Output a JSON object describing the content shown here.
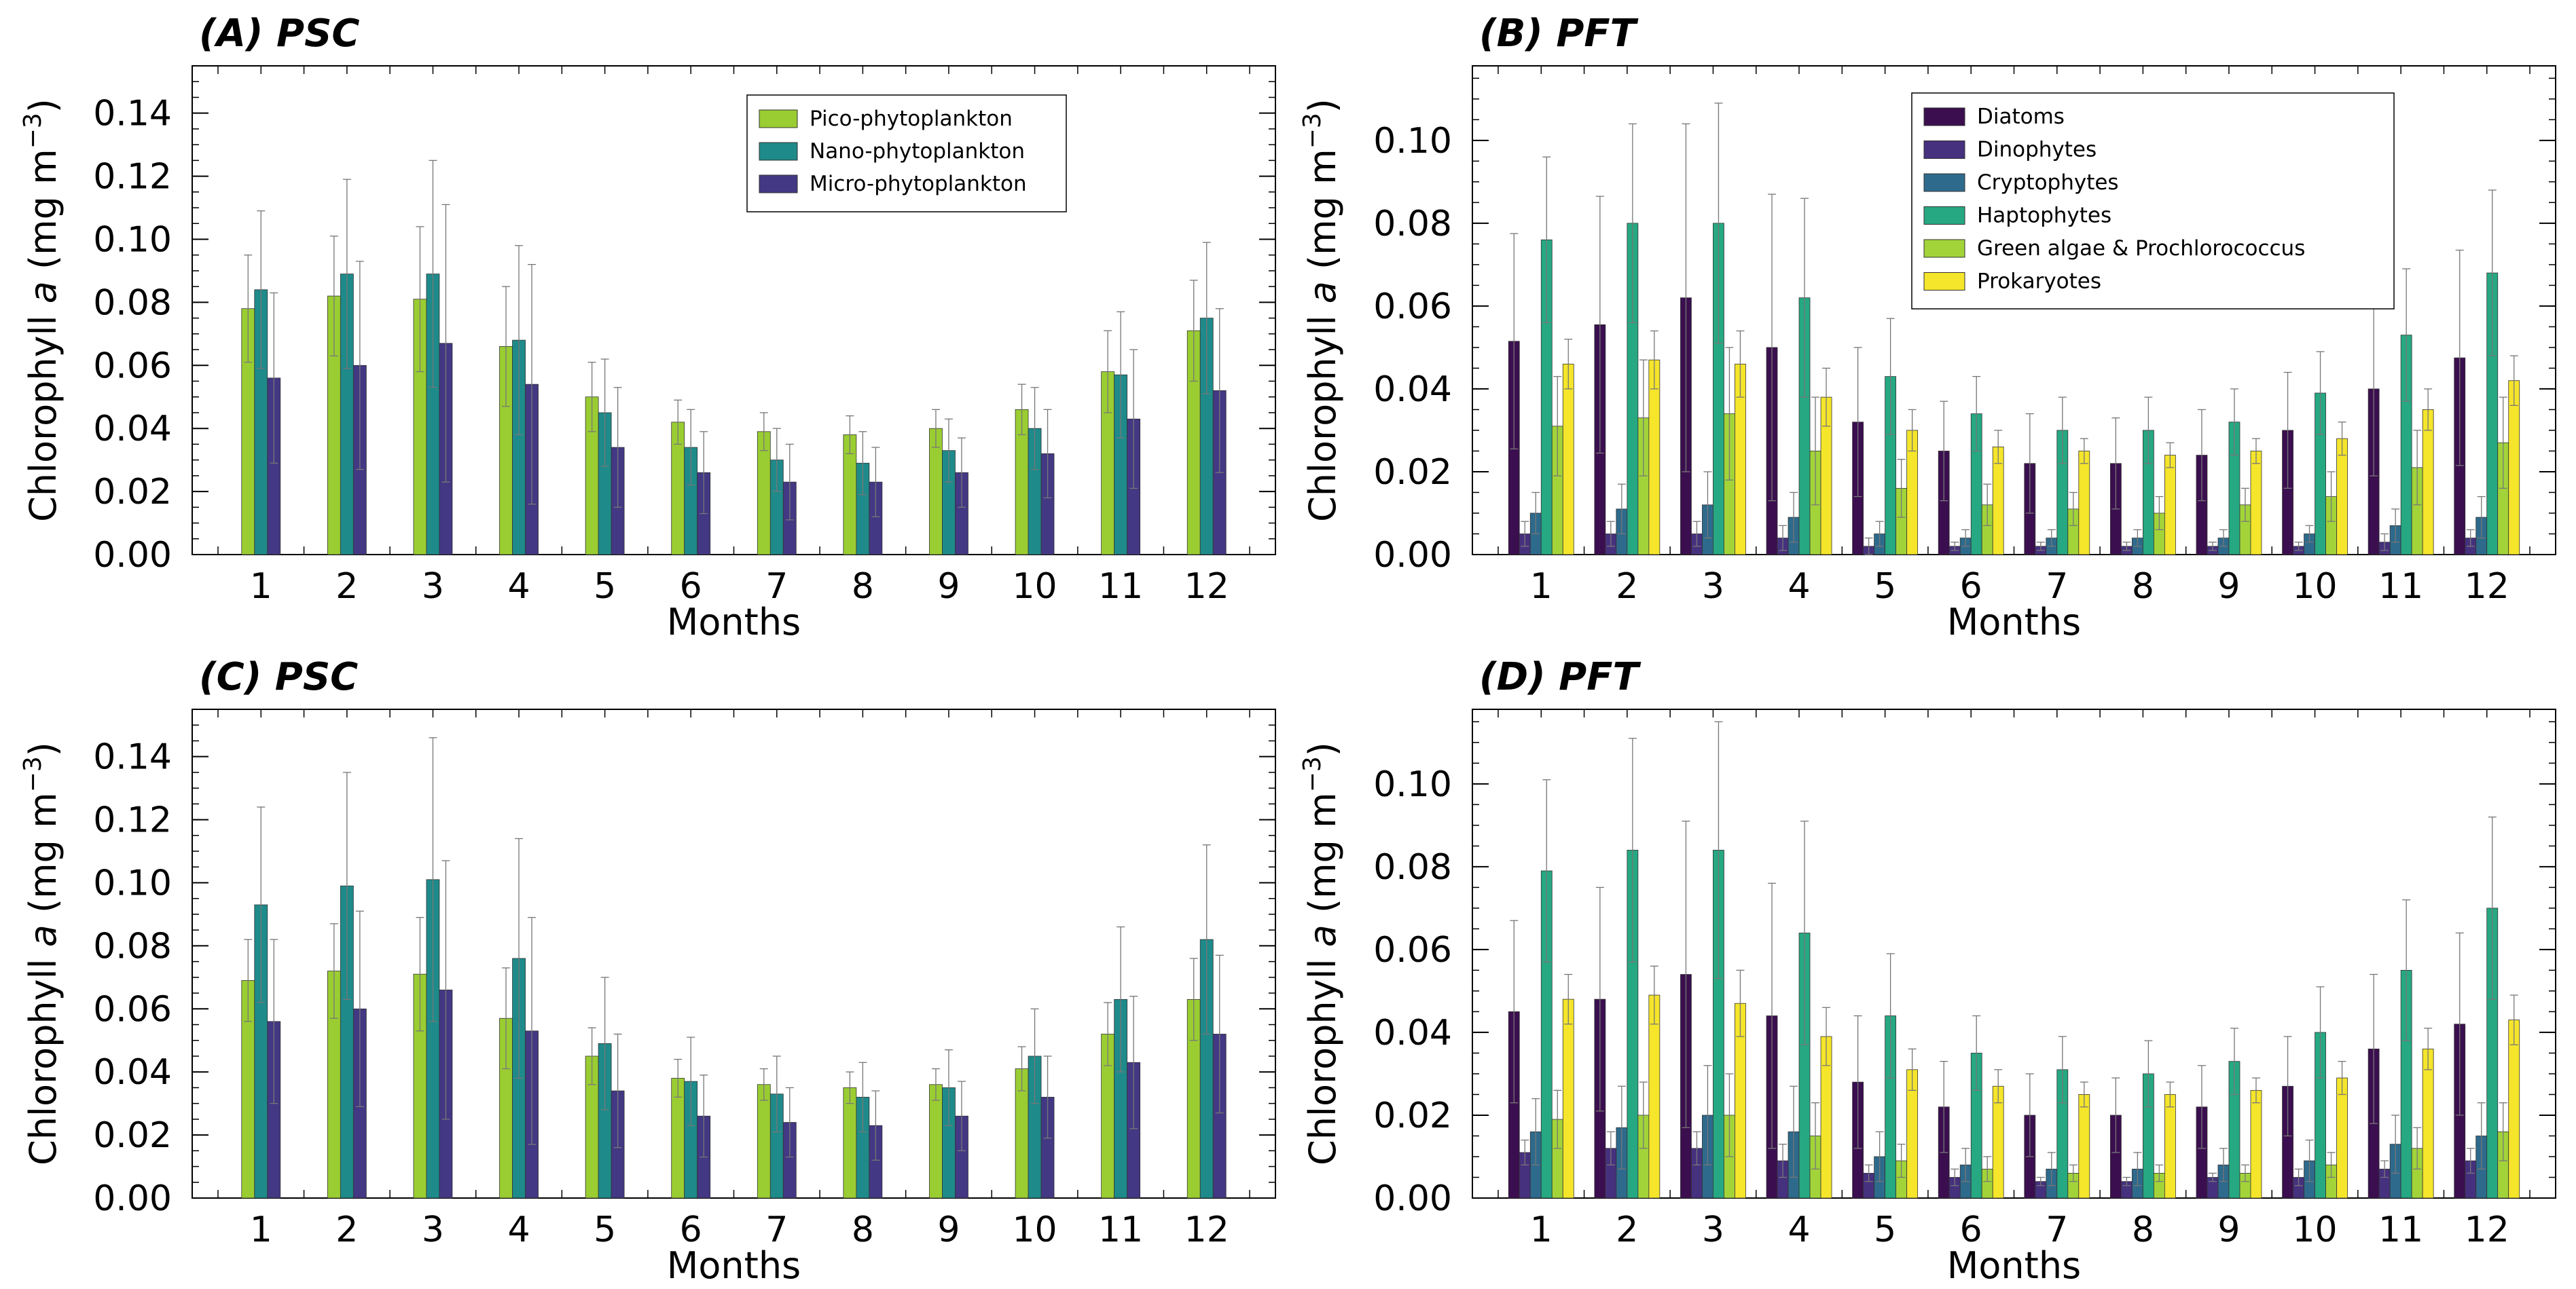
{
  "figure": {
    "colors": {
      "Pico-phytoplankton": "#9acd32",
      "Nano-phytoplankton": "#1f8a8a",
      "Micro-phytoplankton": "#433883",
      "Diatoms": "#3b0f4f",
      "Dinophytes": "#46317e",
      "Cryptophytes": "#2e6a8c",
      "Haptophytes": "#26a882",
      "Green algae & Prochlorococcus": "#a2d43a",
      "Prokaryotes": "#f5e52b"
    }
  },
  "chart_data": [
    {
      "id": "A",
      "title": "(A) PSC",
      "type": "bar",
      "xlabel": "Months",
      "ylabel_main": "Chlorophyll ",
      "ylabel_italic": "a",
      "ylabel_unit": " (mg m",
      "ylabel_sup": "−3",
      "ylabel_close": ")",
      "ylim": [
        0,
        0.155
      ],
      "yticks": [
        0.0,
        0.02,
        0.04,
        0.06,
        0.08,
        0.1,
        0.12,
        0.14
      ],
      "ytick_labels": [
        "0.00",
        "0.02",
        "0.04",
        "0.06",
        "0.08",
        "0.10",
        "0.12",
        "0.14"
      ],
      "categories": [
        "1",
        "2",
        "3",
        "4",
        "5",
        "6",
        "7",
        "8",
        "9",
        "10",
        "11",
        "12"
      ],
      "legend_position": "top-center",
      "series": [
        {
          "name": "Pico-phytoplankton",
          "values": [
            0.078,
            0.082,
            0.081,
            0.066,
            0.05,
            0.042,
            0.039,
            0.038,
            0.04,
            0.046,
            0.058,
            0.071
          ],
          "errors": [
            0.017,
            0.019,
            0.023,
            0.019,
            0.011,
            0.007,
            0.006,
            0.006,
            0.006,
            0.008,
            0.013,
            0.016
          ]
        },
        {
          "name": "Nano-phytoplankton",
          "values": [
            0.084,
            0.089,
            0.089,
            0.068,
            0.045,
            0.034,
            0.03,
            0.029,
            0.033,
            0.04,
            0.057,
            0.075
          ],
          "errors": [
            0.025,
            0.03,
            0.036,
            0.03,
            0.017,
            0.012,
            0.01,
            0.01,
            0.01,
            0.013,
            0.02,
            0.024
          ]
        },
        {
          "name": "Micro-phytoplankton",
          "values": [
            0.056,
            0.06,
            0.067,
            0.054,
            0.034,
            0.026,
            0.023,
            0.023,
            0.026,
            0.032,
            0.043,
            0.052
          ],
          "errors": [
            0.027,
            0.033,
            0.044,
            0.038,
            0.019,
            0.013,
            0.012,
            0.011,
            0.011,
            0.014,
            0.022,
            0.026
          ]
        }
      ]
    },
    {
      "id": "B",
      "title": "(B) PFT",
      "type": "bar",
      "xlabel": "Months",
      "ylabel_main": "Chlorophyll ",
      "ylabel_italic": "a",
      "ylabel_unit": " (mg m",
      "ylabel_sup": "−3",
      "ylabel_close": ")",
      "ylim": [
        0,
        0.118
      ],
      "yticks": [
        0.0,
        0.02,
        0.04,
        0.06,
        0.08,
        0.1
      ],
      "ytick_labels": [
        "0.00",
        "0.02",
        "0.04",
        "0.06",
        "0.08",
        "0.10"
      ],
      "categories": [
        "1",
        "2",
        "3",
        "4",
        "5",
        "6",
        "7",
        "8",
        "9",
        "10",
        "11",
        "12"
      ],
      "legend_position": "top-center",
      "series": [
        {
          "name": "Diatoms",
          "values": [
            0.0515,
            0.0555,
            0.062,
            0.05,
            0.032,
            0.025,
            0.022,
            0.022,
            0.024,
            0.03,
            0.04,
            0.0475
          ],
          "errors": [
            0.026,
            0.031,
            0.042,
            0.037,
            0.018,
            0.012,
            0.012,
            0.011,
            0.011,
            0.014,
            0.021,
            0.026
          ]
        },
        {
          "name": "Dinophytes",
          "values": [
            0.005,
            0.005,
            0.005,
            0.004,
            0.002,
            0.002,
            0.002,
            0.002,
            0.002,
            0.002,
            0.003,
            0.004
          ],
          "errors": [
            0.003,
            0.003,
            0.003,
            0.003,
            0.002,
            0.001,
            0.001,
            0.001,
            0.001,
            0.001,
            0.002,
            0.002
          ]
        },
        {
          "name": "Cryptophytes",
          "values": [
            0.01,
            0.011,
            0.012,
            0.009,
            0.005,
            0.004,
            0.004,
            0.004,
            0.004,
            0.005,
            0.007,
            0.009
          ],
          "errors": [
            0.005,
            0.006,
            0.008,
            0.006,
            0.003,
            0.002,
            0.002,
            0.002,
            0.002,
            0.002,
            0.004,
            0.005
          ]
        },
        {
          "name": "Haptophytes",
          "values": [
            0.076,
            0.08,
            0.08,
            0.062,
            0.043,
            0.034,
            0.03,
            0.03,
            0.032,
            0.039,
            0.053,
            0.068
          ],
          "errors": [
            0.02,
            0.024,
            0.029,
            0.024,
            0.014,
            0.009,
            0.008,
            0.008,
            0.008,
            0.01,
            0.016,
            0.02
          ]
        },
        {
          "name": "Green algae & Prochlorococcus",
          "values": [
            0.031,
            0.033,
            0.034,
            0.025,
            0.016,
            0.012,
            0.011,
            0.01,
            0.012,
            0.014,
            0.021,
            0.027
          ],
          "errors": [
            0.012,
            0.014,
            0.016,
            0.013,
            0.007,
            0.005,
            0.004,
            0.004,
            0.004,
            0.006,
            0.009,
            0.011
          ]
        },
        {
          "name": "Prokaryotes",
          "values": [
            0.046,
            0.047,
            0.046,
            0.038,
            0.03,
            0.026,
            0.025,
            0.024,
            0.025,
            0.028,
            0.035,
            0.042
          ],
          "errors": [
            0.006,
            0.007,
            0.008,
            0.007,
            0.005,
            0.004,
            0.003,
            0.003,
            0.003,
            0.004,
            0.005,
            0.006
          ]
        }
      ]
    },
    {
      "id": "C",
      "title": "(C) PSC",
      "type": "bar",
      "xlabel": "Months",
      "ylabel_main": "Chlorophyll ",
      "ylabel_italic": "a",
      "ylabel_unit": " (mg m",
      "ylabel_sup": "−3",
      "ylabel_close": ")",
      "ylim": [
        0,
        0.155
      ],
      "yticks": [
        0.0,
        0.02,
        0.04,
        0.06,
        0.08,
        0.1,
        0.12,
        0.14
      ],
      "ytick_labels": [
        "0.00",
        "0.02",
        "0.04",
        "0.06",
        "0.08",
        "0.10",
        "0.12",
        "0.14"
      ],
      "categories": [
        "1",
        "2",
        "3",
        "4",
        "5",
        "6",
        "7",
        "8",
        "9",
        "10",
        "11",
        "12"
      ],
      "legend_position": "none",
      "series": [
        {
          "name": "Pico-phytoplankton",
          "values": [
            0.069,
            0.072,
            0.071,
            0.057,
            0.045,
            0.038,
            0.036,
            0.035,
            0.036,
            0.041,
            0.052,
            0.063
          ],
          "errors": [
            0.013,
            0.015,
            0.018,
            0.016,
            0.009,
            0.006,
            0.005,
            0.005,
            0.005,
            0.007,
            0.01,
            0.013
          ]
        },
        {
          "name": "Nano-phytoplankton",
          "values": [
            0.093,
            0.099,
            0.101,
            0.076,
            0.049,
            0.037,
            0.033,
            0.032,
            0.035,
            0.045,
            0.063,
            0.082
          ],
          "errors": [
            0.031,
            0.036,
            0.045,
            0.038,
            0.021,
            0.014,
            0.012,
            0.011,
            0.012,
            0.015,
            0.023,
            0.03
          ]
        },
        {
          "name": "Micro-phytoplankton",
          "values": [
            0.056,
            0.06,
            0.066,
            0.053,
            0.034,
            0.026,
            0.024,
            0.023,
            0.026,
            0.032,
            0.043,
            0.052
          ],
          "errors": [
            0.026,
            0.031,
            0.041,
            0.036,
            0.018,
            0.013,
            0.011,
            0.011,
            0.011,
            0.013,
            0.021,
            0.025
          ]
        }
      ]
    },
    {
      "id": "D",
      "title": "(D) PFT",
      "type": "bar",
      "xlabel": "Months",
      "ylabel_main": "Chlorophyll ",
      "ylabel_italic": "a",
      "ylabel_unit": " (mg m",
      "ylabel_sup": "−3",
      "ylabel_close": ")",
      "ylim": [
        0,
        0.118
      ],
      "yticks": [
        0.0,
        0.02,
        0.04,
        0.06,
        0.08,
        0.1
      ],
      "ytick_labels": [
        "0.00",
        "0.02",
        "0.04",
        "0.06",
        "0.08",
        "0.10"
      ],
      "categories": [
        "1",
        "2",
        "3",
        "4",
        "5",
        "6",
        "7",
        "8",
        "9",
        "10",
        "11",
        "12"
      ],
      "legend_position": "none",
      "series": [
        {
          "name": "Diatoms",
          "values": [
            0.045,
            0.048,
            0.054,
            0.044,
            0.028,
            0.022,
            0.02,
            0.02,
            0.022,
            0.027,
            0.036,
            0.042
          ],
          "errors": [
            0.022,
            0.027,
            0.037,
            0.032,
            0.016,
            0.011,
            0.01,
            0.009,
            0.01,
            0.012,
            0.018,
            0.022
          ]
        },
        {
          "name": "Dinophytes",
          "values": [
            0.011,
            0.012,
            0.012,
            0.009,
            0.006,
            0.005,
            0.004,
            0.004,
            0.005,
            0.005,
            0.007,
            0.009
          ],
          "errors": [
            0.003,
            0.004,
            0.004,
            0.004,
            0.002,
            0.002,
            0.001,
            0.001,
            0.001,
            0.002,
            0.002,
            0.003
          ]
        },
        {
          "name": "Cryptophytes",
          "values": [
            0.016,
            0.017,
            0.02,
            0.016,
            0.01,
            0.008,
            0.007,
            0.007,
            0.008,
            0.009,
            0.013,
            0.015
          ],
          "errors": [
            0.008,
            0.01,
            0.012,
            0.011,
            0.006,
            0.004,
            0.004,
            0.004,
            0.004,
            0.005,
            0.007,
            0.008
          ]
        },
        {
          "name": "Haptophytes",
          "values": [
            0.079,
            0.084,
            0.084,
            0.064,
            0.044,
            0.035,
            0.031,
            0.03,
            0.033,
            0.04,
            0.055,
            0.07
          ],
          "errors": [
            0.022,
            0.027,
            0.031,
            0.027,
            0.015,
            0.009,
            0.008,
            0.008,
            0.008,
            0.011,
            0.017,
            0.022
          ]
        },
        {
          "name": "Green algae & Prochlorococcus",
          "values": [
            0.019,
            0.02,
            0.02,
            0.015,
            0.009,
            0.007,
            0.006,
            0.006,
            0.006,
            0.008,
            0.012,
            0.016
          ],
          "errors": [
            0.007,
            0.008,
            0.01,
            0.008,
            0.004,
            0.003,
            0.002,
            0.002,
            0.002,
            0.003,
            0.005,
            0.007
          ]
        },
        {
          "name": "Prokaryotes",
          "values": [
            0.048,
            0.049,
            0.047,
            0.039,
            0.031,
            0.027,
            0.025,
            0.025,
            0.026,
            0.029,
            0.036,
            0.043
          ],
          "errors": [
            0.006,
            0.007,
            0.008,
            0.007,
            0.005,
            0.004,
            0.003,
            0.003,
            0.003,
            0.004,
            0.005,
            0.006
          ]
        }
      ]
    }
  ]
}
